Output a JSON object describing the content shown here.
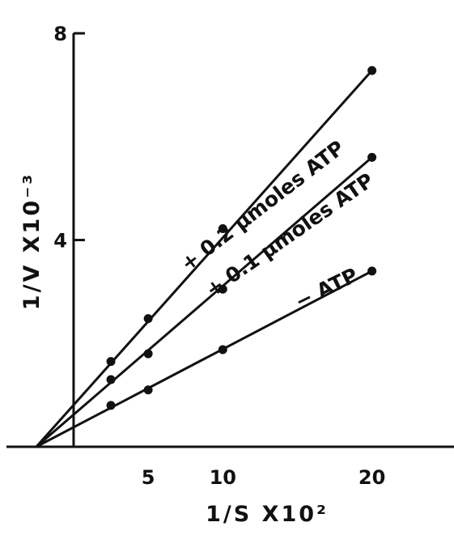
{
  "chart_data": {
    "type": "line",
    "title": "",
    "xlabel": "1/S X10²",
    "ylabel": "1/V X10⁻³",
    "xlim": [
      -4.5,
      25.5
    ],
    "ylim": [
      0,
      8.3
    ],
    "x_ticks": [
      5,
      10,
      20
    ],
    "x_tick_labels": [
      "5",
      "10",
      "20"
    ],
    "y_ticks": [
      4,
      8
    ],
    "y_tick_labels": [
      "4",
      "8"
    ],
    "grid": false,
    "legend": "none",
    "series": [
      {
        "name": "+ 0.2 μmoles ATP",
        "x": [
          2.5,
          5,
          10,
          20
        ],
        "y": [
          1.65,
          2.48,
          4.22,
          7.28
        ]
      },
      {
        "name": "+ 0.1 μmoles ATP",
        "x": [
          2.5,
          5,
          10,
          20
        ],
        "y": [
          1.3,
          1.8,
          3.05,
          5.6
        ]
      },
      {
        "name": "− ATP",
        "x": [
          2.5,
          5,
          10,
          20
        ],
        "y": [
          0.8,
          1.1,
          1.88,
          3.4
        ]
      }
    ],
    "x_intercept": -2.5,
    "color": "#111111"
  }
}
